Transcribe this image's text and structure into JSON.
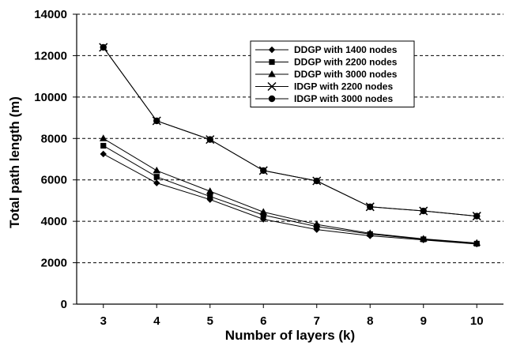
{
  "chart_data": {
    "type": "line",
    "xlabel": "Number of layers (k)",
    "ylabel": "Total path length (m)",
    "x": [
      3,
      4,
      5,
      6,
      7,
      8,
      9,
      10
    ],
    "xlim": [
      2.5,
      10.5
    ],
    "ylim": [
      0,
      14000
    ],
    "yticks": [
      0,
      2000,
      4000,
      6000,
      8000,
      10000,
      12000,
      14000
    ],
    "grid": "horizontal dashed",
    "legend_position": "top-right",
    "series": [
      {
        "name": "DDGP with 1400 nodes",
        "marker": "diamond",
        "values": [
          7250,
          5850,
          5050,
          4100,
          3600,
          3300,
          3100,
          2900
        ]
      },
      {
        "name": "DDGP with 2200 nodes",
        "marker": "square",
        "values": [
          7650,
          6150,
          5200,
          4300,
          3750,
          3380,
          3130,
          2920
        ]
      },
      {
        "name": "DDGP with 3000 nodes",
        "marker": "triangle",
        "values": [
          8000,
          6450,
          5450,
          4450,
          3850,
          3420,
          3150,
          2950
        ]
      },
      {
        "name": "IDGP with 2200 nodes",
        "marker": "cross",
        "values": [
          12400,
          8850,
          7950,
          6450,
          5950,
          4700,
          4500,
          4250
        ]
      },
      {
        "name": "IDGP with 3000 nodes",
        "marker": "circle",
        "values": [
          12400,
          8850,
          7950,
          6450,
          5950,
          4700,
          4500,
          4250
        ]
      }
    ]
  }
}
